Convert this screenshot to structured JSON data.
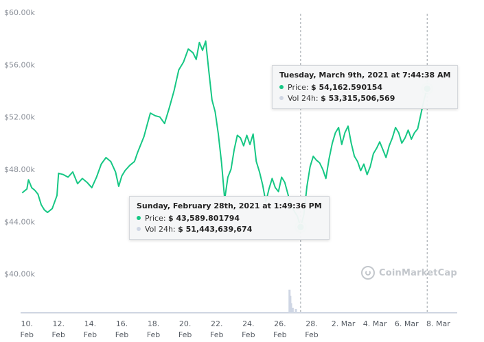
{
  "chart_data": {
    "type": "line",
    "title": "",
    "xlabel": "",
    "ylabel": "",
    "ylim": [
      37000,
      60000
    ],
    "grid": false,
    "y_ticks": [
      "$60.00k",
      "$56.00k",
      "$52.00k",
      "$48.00k",
      "$44.00k",
      "$40.00k"
    ],
    "y_tick_values": [
      60000,
      56000,
      52000,
      48000,
      44000,
      40000
    ],
    "x_ticks": [
      {
        "day": 10,
        "label": "10.",
        "sub": "Feb"
      },
      {
        "day": 12,
        "label": "12.",
        "sub": "Feb"
      },
      {
        "day": 14,
        "label": "14.",
        "sub": "Feb"
      },
      {
        "day": 16,
        "label": "16.",
        "sub": "Feb"
      },
      {
        "day": 18,
        "label": "18.",
        "sub": "Feb"
      },
      {
        "day": 20,
        "label": "20.",
        "sub": "Feb"
      },
      {
        "day": 22,
        "label": "22.",
        "sub": "Feb"
      },
      {
        "day": 24,
        "label": "24.",
        "sub": "Feb"
      },
      {
        "day": 26,
        "label": "26.",
        "sub": "Feb"
      },
      {
        "day": 28,
        "label": "28.",
        "sub": "Feb"
      },
      {
        "day": 30,
        "label": "2. Mar",
        "sub": ""
      },
      {
        "day": 32,
        "label": "4. Mar",
        "sub": ""
      },
      {
        "day": 34,
        "label": "6. Mar",
        "sub": ""
      },
      {
        "day": 36,
        "label": "8. Mar",
        "sub": ""
      }
    ],
    "x_range": [
      9.6,
      37.2
    ],
    "series": [
      {
        "name": "Price",
        "color": "#16c784",
        "points": [
          [
            9.7,
            46200
          ],
          [
            10.0,
            46500
          ],
          [
            10.1,
            47200
          ],
          [
            10.3,
            46600
          ],
          [
            10.5,
            46400
          ],
          [
            10.7,
            46100
          ],
          [
            10.9,
            45300
          ],
          [
            11.1,
            44900
          ],
          [
            11.3,
            44700
          ],
          [
            11.6,
            45000
          ],
          [
            11.9,
            46000
          ],
          [
            12.0,
            47700
          ],
          [
            12.3,
            47600
          ],
          [
            12.6,
            47400
          ],
          [
            12.9,
            47800
          ],
          [
            13.2,
            46900
          ],
          [
            13.5,
            47300
          ],
          [
            13.8,
            47000
          ],
          [
            14.1,
            46600
          ],
          [
            14.4,
            47400
          ],
          [
            14.7,
            48400
          ],
          [
            15.0,
            48900
          ],
          [
            15.3,
            48600
          ],
          [
            15.6,
            47800
          ],
          [
            15.8,
            46700
          ],
          [
            16.0,
            47500
          ],
          [
            16.2,
            47900
          ],
          [
            16.5,
            48300
          ],
          [
            16.8,
            48600
          ],
          [
            17.0,
            49300
          ],
          [
            17.2,
            49900
          ],
          [
            17.4,
            50500
          ],
          [
            17.6,
            51400
          ],
          [
            17.8,
            52300
          ],
          [
            18.1,
            52100
          ],
          [
            18.4,
            52000
          ],
          [
            18.7,
            51500
          ],
          [
            19.0,
            52700
          ],
          [
            19.3,
            54000
          ],
          [
            19.6,
            55600
          ],
          [
            19.9,
            56200
          ],
          [
            20.2,
            57200
          ],
          [
            20.5,
            56900
          ],
          [
            20.7,
            56400
          ],
          [
            20.9,
            57700
          ],
          [
            21.1,
            57100
          ],
          [
            21.3,
            57800
          ],
          [
            21.5,
            55500
          ],
          [
            21.7,
            53300
          ],
          [
            21.9,
            52400
          ],
          [
            22.1,
            50700
          ],
          [
            22.3,
            48500
          ],
          [
            22.5,
            45700
          ],
          [
            22.7,
            47400
          ],
          [
            22.9,
            48000
          ],
          [
            23.1,
            49500
          ],
          [
            23.3,
            50600
          ],
          [
            23.5,
            50400
          ],
          [
            23.7,
            49800
          ],
          [
            23.9,
            50600
          ],
          [
            24.1,
            49900
          ],
          [
            24.3,
            50700
          ],
          [
            24.5,
            48600
          ],
          [
            24.7,
            47800
          ],
          [
            24.9,
            46800
          ],
          [
            25.1,
            45500
          ],
          [
            25.3,
            46500
          ],
          [
            25.5,
            47300
          ],
          [
            25.7,
            46600
          ],
          [
            25.9,
            46300
          ],
          [
            26.1,
            47400
          ],
          [
            26.3,
            47000
          ],
          [
            26.5,
            46100
          ],
          [
            26.7,
            45200
          ],
          [
            26.9,
            44800
          ],
          [
            27.1,
            44400
          ],
          [
            27.3,
            43600
          ],
          [
            27.5,
            44500
          ],
          [
            27.7,
            46700
          ],
          [
            27.9,
            48200
          ],
          [
            28.1,
            49000
          ],
          [
            28.3,
            48700
          ],
          [
            28.5,
            48500
          ],
          [
            28.7,
            48000
          ],
          [
            28.9,
            47300
          ],
          [
            29.1,
            48800
          ],
          [
            29.3,
            50000
          ],
          [
            29.5,
            50800
          ],
          [
            29.7,
            51200
          ],
          [
            29.9,
            49900
          ],
          [
            30.1,
            50800
          ],
          [
            30.3,
            51300
          ],
          [
            30.5,
            50000
          ],
          [
            30.7,
            49000
          ],
          [
            30.9,
            48600
          ],
          [
            31.1,
            47900
          ],
          [
            31.3,
            48400
          ],
          [
            31.5,
            47600
          ],
          [
            31.7,
            48200
          ],
          [
            31.9,
            49200
          ],
          [
            32.1,
            49600
          ],
          [
            32.3,
            50100
          ],
          [
            32.5,
            49500
          ],
          [
            32.7,
            48900
          ],
          [
            32.9,
            49800
          ],
          [
            33.1,
            50400
          ],
          [
            33.3,
            51200
          ],
          [
            33.5,
            50800
          ],
          [
            33.7,
            50000
          ],
          [
            33.9,
            50400
          ],
          [
            34.1,
            51000
          ],
          [
            34.3,
            50300
          ],
          [
            34.5,
            50800
          ],
          [
            34.7,
            51100
          ],
          [
            34.9,
            52200
          ],
          [
            35.1,
            53300
          ],
          [
            35.3,
            54162
          ]
        ]
      },
      {
        "name": "Vol 24h",
        "color": "#cfd6e4",
        "bars": [
          [
            26.6,
            51443639674
          ],
          [
            26.65,
            38000000000
          ],
          [
            26.7,
            22000000000
          ],
          [
            26.8,
            12000000000
          ],
          [
            27.0,
            9000000000
          ]
        ],
        "baseline": 2500000000,
        "vmax": 120000000000
      }
    ],
    "crosshairs": [
      27.3,
      35.3
    ],
    "highlights": [
      {
        "x": 27.3,
        "y": 43589.801794
      },
      {
        "x": 35.3,
        "y": 54162.590154
      }
    ],
    "watermark": "CoinMarketCap"
  },
  "tooltips": [
    {
      "title": "Sunday, February 28th, 2021 at 1:49:36 PM",
      "price_label": "Price:",
      "price_value": "$ 43,589.801794",
      "vol_label": "Vol 24h:",
      "vol_value": "$ 51,443,639,674",
      "price_dot_color": "#16c784",
      "vol_dot_color": "#cfd6e4"
    },
    {
      "title": "Tuesday, March 9th, 2021 at 7:44:38 AM",
      "price_label": "Price:",
      "price_value": "$ 54,162.590154",
      "vol_label": "Vol 24h:",
      "vol_value": "$ 53,315,506,569",
      "price_dot_color": "#16c784",
      "vol_dot_color": "#cfd6e4"
    }
  ]
}
